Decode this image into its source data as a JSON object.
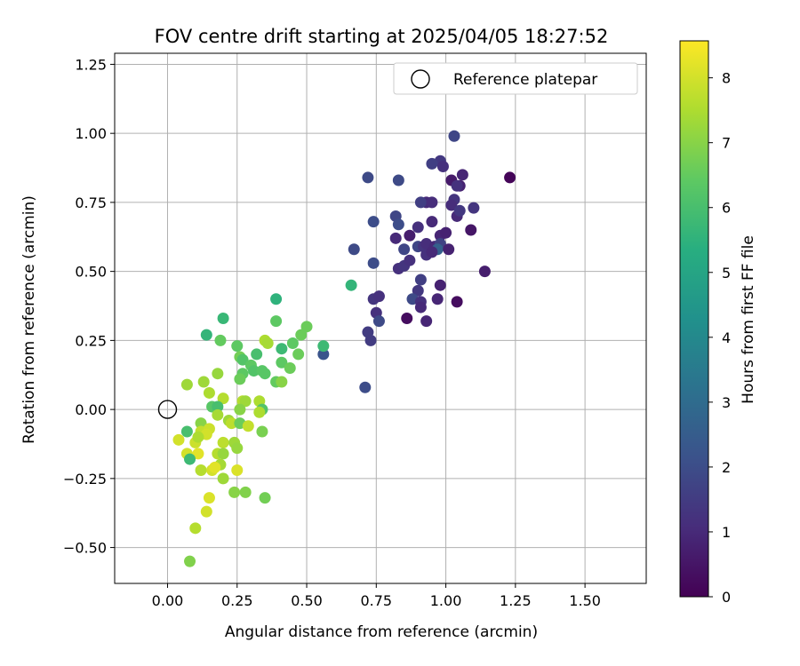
{
  "chart_data": {
    "type": "scatter",
    "title": "FOV centre drift starting at 2025/04/05 18:27:52",
    "xlabel": "Angular distance from reference (arcmin)",
    "ylabel": "Rotation from reference (arcmin)",
    "xlim": [
      -0.19,
      1.72
    ],
    "ylim": [
      -0.63,
      1.29
    ],
    "xticks": [
      "0.00",
      "0.25",
      "0.50",
      "0.75",
      "1.00",
      "1.25",
      "1.50"
    ],
    "yticks": [
      "−0.50",
      "−0.25",
      "0.00",
      "0.25",
      "0.50",
      "0.75",
      "1.00",
      "1.25"
    ],
    "grid": true,
    "legend": {
      "placement": "top-right",
      "label": "Reference platepar"
    },
    "reference_point": {
      "x": 0.0,
      "y": 0.0
    },
    "colorbar": {
      "label": "Hours from first FF file",
      "colormap": "viridis",
      "range": [
        0,
        8.57
      ],
      "ticks": [
        "0",
        "1",
        "2",
        "3",
        "4",
        "5",
        "6",
        "7",
        "8"
      ]
    },
    "series": [
      {
        "points": [
          {
            "x": 1.03,
            "y": 0.99,
            "c": 1.8
          },
          {
            "x": 0.72,
            "y": 0.84,
            "c": 1.9
          },
          {
            "x": 0.83,
            "y": 0.83,
            "c": 1.9
          },
          {
            "x": 1.23,
            "y": 0.84,
            "c": 0.1
          },
          {
            "x": 0.98,
            "y": 0.9,
            "c": 1.4
          },
          {
            "x": 0.99,
            "y": 0.88,
            "c": 1.2
          },
          {
            "x": 0.95,
            "y": 0.89,
            "c": 1.6
          },
          {
            "x": 1.02,
            "y": 0.83,
            "c": 0.6
          },
          {
            "x": 1.05,
            "y": 0.81,
            "c": 0.8
          },
          {
            "x": 1.06,
            "y": 0.85,
            "c": 0.9
          },
          {
            "x": 1.04,
            "y": 0.81,
            "c": 1.2
          },
          {
            "x": 1.03,
            "y": 0.76,
            "c": 1.3
          },
          {
            "x": 0.93,
            "y": 0.75,
            "c": 1.0
          },
          {
            "x": 0.91,
            "y": 0.75,
            "c": 1.6
          },
          {
            "x": 0.95,
            "y": 0.75,
            "c": 1.1
          },
          {
            "x": 1.02,
            "y": 0.74,
            "c": 1.1
          },
          {
            "x": 1.1,
            "y": 0.73,
            "c": 1.3
          },
          {
            "x": 1.04,
            "y": 0.7,
            "c": 1.0
          },
          {
            "x": 1.05,
            "y": 0.72,
            "c": 1.4
          },
          {
            "x": 0.82,
            "y": 0.7,
            "c": 1.8
          },
          {
            "x": 0.74,
            "y": 0.68,
            "c": 2.0
          },
          {
            "x": 0.83,
            "y": 0.67,
            "c": 2.0
          },
          {
            "x": 0.95,
            "y": 0.68,
            "c": 1.0
          },
          {
            "x": 0.9,
            "y": 0.66,
            "c": 1.2
          },
          {
            "x": 0.87,
            "y": 0.63,
            "c": 0.7
          },
          {
            "x": 0.82,
            "y": 0.62,
            "c": 1.0
          },
          {
            "x": 0.98,
            "y": 0.63,
            "c": 0.9
          },
          {
            "x": 1.0,
            "y": 0.64,
            "c": 0.8
          },
          {
            "x": 1.09,
            "y": 0.65,
            "c": 0.5
          },
          {
            "x": 0.67,
            "y": 0.58,
            "c": 1.9
          },
          {
            "x": 0.85,
            "y": 0.58,
            "c": 1.8
          },
          {
            "x": 0.9,
            "y": 0.59,
            "c": 1.8
          },
          {
            "x": 0.92,
            "y": 0.59,
            "c": 1.3
          },
          {
            "x": 0.93,
            "y": 0.6,
            "c": 1.1
          },
          {
            "x": 0.96,
            "y": 0.59,
            "c": 1.0
          },
          {
            "x": 0.98,
            "y": 0.6,
            "c": 1.7
          },
          {
            "x": 0.97,
            "y": 0.58,
            "c": 2.6
          },
          {
            "x": 1.01,
            "y": 0.58,
            "c": 0.8
          },
          {
            "x": 0.93,
            "y": 0.56,
            "c": 1.2
          },
          {
            "x": 0.95,
            "y": 0.57,
            "c": 1.0
          },
          {
            "x": 0.74,
            "y": 0.53,
            "c": 2.0
          },
          {
            "x": 0.83,
            "y": 0.51,
            "c": 1.2
          },
          {
            "x": 0.85,
            "y": 0.52,
            "c": 1.3
          },
          {
            "x": 0.87,
            "y": 0.54,
            "c": 1.2
          },
          {
            "x": 1.14,
            "y": 0.5,
            "c": 0.7
          },
          {
            "x": 0.91,
            "y": 0.47,
            "c": 1.6
          },
          {
            "x": 0.98,
            "y": 0.45,
            "c": 0.8
          },
          {
            "x": 0.9,
            "y": 0.43,
            "c": 1.4
          },
          {
            "x": 0.88,
            "y": 0.4,
            "c": 1.9
          },
          {
            "x": 0.74,
            "y": 0.4,
            "c": 1.3
          },
          {
            "x": 0.76,
            "y": 0.41,
            "c": 1.2
          },
          {
            "x": 0.97,
            "y": 0.4,
            "c": 0.9
          },
          {
            "x": 1.04,
            "y": 0.39,
            "c": 0.3
          },
          {
            "x": 0.91,
            "y": 0.39,
            "c": 1.2
          },
          {
            "x": 0.91,
            "y": 0.37,
            "c": 1.0
          },
          {
            "x": 0.75,
            "y": 0.35,
            "c": 1.2
          },
          {
            "x": 0.86,
            "y": 0.33,
            "c": 0.3
          },
          {
            "x": 0.93,
            "y": 0.32,
            "c": 0.9
          },
          {
            "x": 0.76,
            "y": 0.32,
            "c": 1.9
          },
          {
            "x": 0.72,
            "y": 0.28,
            "c": 1.5
          },
          {
            "x": 0.73,
            "y": 0.25,
            "c": 1.5
          },
          {
            "x": 0.56,
            "y": 0.2,
            "c": 2.2
          },
          {
            "x": 0.71,
            "y": 0.08,
            "c": 2.0
          },
          {
            "x": 0.66,
            "y": 0.45,
            "c": 5.6
          },
          {
            "x": 0.39,
            "y": 0.4,
            "c": 5.5
          },
          {
            "x": 0.39,
            "y": 0.32,
            "c": 6.4
          },
          {
            "x": 0.5,
            "y": 0.3,
            "c": 6.6
          },
          {
            "x": 0.48,
            "y": 0.27,
            "c": 6.6
          },
          {
            "x": 0.2,
            "y": 0.33,
            "c": 5.7
          },
          {
            "x": 0.14,
            "y": 0.27,
            "c": 5.6
          },
          {
            "x": 0.19,
            "y": 0.25,
            "c": 6.5
          },
          {
            "x": 0.25,
            "y": 0.23,
            "c": 6.4
          },
          {
            "x": 0.35,
            "y": 0.25,
            "c": 7.5
          },
          {
            "x": 0.36,
            "y": 0.24,
            "c": 7.4
          },
          {
            "x": 0.41,
            "y": 0.22,
            "c": 5.8
          },
          {
            "x": 0.45,
            "y": 0.24,
            "c": 6.4
          },
          {
            "x": 0.56,
            "y": 0.23,
            "c": 5.8
          },
          {
            "x": 0.47,
            "y": 0.2,
            "c": 6.6
          },
          {
            "x": 0.32,
            "y": 0.2,
            "c": 6.0
          },
          {
            "x": 0.26,
            "y": 0.19,
            "c": 6.7
          },
          {
            "x": 0.27,
            "y": 0.18,
            "c": 6.2
          },
          {
            "x": 0.3,
            "y": 0.16,
            "c": 6.4
          },
          {
            "x": 0.41,
            "y": 0.17,
            "c": 6.4
          },
          {
            "x": 0.44,
            "y": 0.15,
            "c": 6.6
          },
          {
            "x": 0.31,
            "y": 0.14,
            "c": 6.2
          },
          {
            "x": 0.34,
            "y": 0.14,
            "c": 6.3
          },
          {
            "x": 0.35,
            "y": 0.13,
            "c": 6.3
          },
          {
            "x": 0.18,
            "y": 0.13,
            "c": 7.2
          },
          {
            "x": 0.27,
            "y": 0.13,
            "c": 6.4
          },
          {
            "x": 0.26,
            "y": 0.11,
            "c": 6.6
          },
          {
            "x": 0.39,
            "y": 0.1,
            "c": 6.5
          },
          {
            "x": 0.41,
            "y": 0.1,
            "c": 7.0
          },
          {
            "x": 0.13,
            "y": 0.1,
            "c": 7.3
          },
          {
            "x": 0.07,
            "y": 0.09,
            "c": 7.3
          },
          {
            "x": 0.15,
            "y": 0.06,
            "c": 7.5
          },
          {
            "x": 0.2,
            "y": 0.04,
            "c": 7.6
          },
          {
            "x": 0.27,
            "y": 0.03,
            "c": 7.6
          },
          {
            "x": 0.28,
            "y": 0.03,
            "c": 7.3
          },
          {
            "x": 0.33,
            "y": 0.03,
            "c": 7.5
          },
          {
            "x": 0.26,
            "y": 0.0,
            "c": 7.0
          },
          {
            "x": 0.16,
            "y": 0.01,
            "c": 6.3
          },
          {
            "x": 0.18,
            "y": 0.01,
            "c": 6.0
          },
          {
            "x": 0.34,
            "y": 0.0,
            "c": 6.2
          },
          {
            "x": 0.33,
            "y": -0.01,
            "c": 7.5
          },
          {
            "x": 0.18,
            "y": -0.02,
            "c": 7.4
          },
          {
            "x": 0.12,
            "y": -0.05,
            "c": 7.0
          },
          {
            "x": 0.22,
            "y": -0.04,
            "c": 7.3
          },
          {
            "x": 0.23,
            "y": -0.05,
            "c": 7.7
          },
          {
            "x": 0.26,
            "y": -0.05,
            "c": 6.6
          },
          {
            "x": 0.29,
            "y": -0.06,
            "c": 7.8
          },
          {
            "x": 0.07,
            "y": -0.08,
            "c": 6.0
          },
          {
            "x": 0.12,
            "y": -0.08,
            "c": 7.8
          },
          {
            "x": 0.15,
            "y": -0.07,
            "c": 7.9
          },
          {
            "x": 0.14,
            "y": -0.09,
            "c": 8.0
          },
          {
            "x": 0.34,
            "y": -0.08,
            "c": 6.8
          },
          {
            "x": 0.04,
            "y": -0.11,
            "c": 8.0
          },
          {
            "x": 0.1,
            "y": -0.12,
            "c": 7.9
          },
          {
            "x": 0.11,
            "y": -0.1,
            "c": 7.5
          },
          {
            "x": 0.2,
            "y": -0.12,
            "c": 7.7
          },
          {
            "x": 0.24,
            "y": -0.12,
            "c": 7.3
          },
          {
            "x": 0.25,
            "y": -0.14,
            "c": 7.2
          },
          {
            "x": 0.07,
            "y": -0.16,
            "c": 8.0
          },
          {
            "x": 0.11,
            "y": -0.16,
            "c": 8.2
          },
          {
            "x": 0.18,
            "y": -0.16,
            "c": 7.6
          },
          {
            "x": 0.2,
            "y": -0.16,
            "c": 7.2
          },
          {
            "x": 0.08,
            "y": -0.18,
            "c": 5.8
          },
          {
            "x": 0.19,
            "y": -0.2,
            "c": 7.4
          },
          {
            "x": 0.12,
            "y": -0.22,
            "c": 7.6
          },
          {
            "x": 0.16,
            "y": -0.22,
            "c": 8.0
          },
          {
            "x": 0.17,
            "y": -0.21,
            "c": 8.2
          },
          {
            "x": 0.25,
            "y": -0.22,
            "c": 8.1
          },
          {
            "x": 0.2,
            "y": -0.25,
            "c": 7.3
          },
          {
            "x": 0.24,
            "y": -0.3,
            "c": 7.0
          },
          {
            "x": 0.28,
            "y": -0.3,
            "c": 6.9
          },
          {
            "x": 0.35,
            "y": -0.32,
            "c": 6.7
          },
          {
            "x": 0.15,
            "y": -0.32,
            "c": 8.1
          },
          {
            "x": 0.14,
            "y": -0.37,
            "c": 8.0
          },
          {
            "x": 0.1,
            "y": -0.43,
            "c": 7.6
          },
          {
            "x": 0.08,
            "y": -0.55,
            "c": 6.9
          }
        ]
      }
    ]
  }
}
